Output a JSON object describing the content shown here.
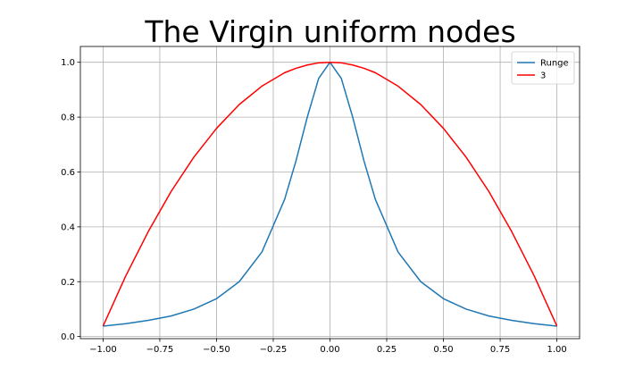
{
  "chart_data": {
    "type": "line",
    "title": "The Virgin uniform nodes",
    "xlabel": "",
    "ylabel": "",
    "xlim": [
      -1.1,
      1.1
    ],
    "ylim": [
      -0.0077,
      1.0577
    ],
    "xticks": [
      -1.0,
      -0.75,
      -0.5,
      -0.25,
      0.0,
      0.25,
      0.5,
      0.75,
      1.0
    ],
    "xtick_labels": [
      "−1.00",
      "−0.75",
      "−0.50",
      "−0.25",
      "0.00",
      "0.25",
      "0.50",
      "0.75",
      "1.00"
    ],
    "yticks": [
      0.0,
      0.2,
      0.4,
      0.6,
      0.8,
      1.0
    ],
    "ytick_labels": [
      "0.0",
      "0.2",
      "0.4",
      "0.6",
      "0.8",
      "1.0"
    ],
    "grid": true,
    "legend": "top-right",
    "x": [
      -1.0,
      -0.9,
      -0.8,
      -0.7,
      -0.6,
      -0.5,
      -0.4,
      -0.3,
      -0.2,
      -0.15,
      -0.1,
      -0.05,
      0.0,
      0.05,
      0.1,
      0.15,
      0.2,
      0.3,
      0.4,
      0.5,
      0.6,
      0.7,
      0.8,
      0.9,
      1.0
    ],
    "series": [
      {
        "name": "Runge",
        "color": "#1f77b4",
        "values": [
          0.038,
          0.047,
          0.059,
          0.075,
          0.1,
          0.138,
          0.2,
          0.308,
          0.5,
          0.64,
          0.8,
          0.941,
          1.0,
          0.941,
          0.8,
          0.64,
          0.5,
          0.308,
          0.2,
          0.138,
          0.1,
          0.075,
          0.059,
          0.047,
          0.038
        ]
      },
      {
        "name": "3",
        "color": "#ff0000",
        "values": [
          0.038,
          0.221,
          0.384,
          0.529,
          0.654,
          0.759,
          0.846,
          0.913,
          0.962,
          0.978,
          0.99,
          0.998,
          1.0,
          0.998,
          0.99,
          0.978,
          0.962,
          0.913,
          0.846,
          0.759,
          0.654,
          0.529,
          0.384,
          0.221,
          0.038
        ]
      }
    ]
  }
}
